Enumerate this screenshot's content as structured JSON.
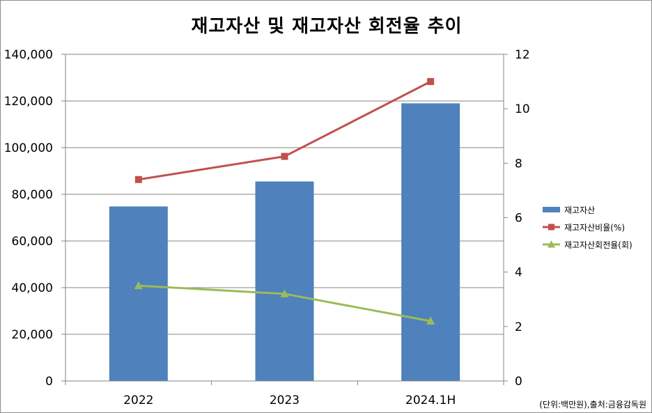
{
  "chart_data": {
    "type": "bar",
    "title": "재고자산 및 재고자산 회전율 추이",
    "categories": [
      "2022",
      "2023",
      "2024.1H"
    ],
    "y_left": {
      "range": [
        0,
        140000
      ],
      "ticks": [
        "0",
        "20,000",
        "40,000",
        "60,000",
        "80,000",
        "100,000",
        "120,000",
        "140,000"
      ],
      "tick_values": [
        0,
        20000,
        40000,
        60000,
        80000,
        100000,
        120000,
        140000
      ]
    },
    "y_right": {
      "range": [
        0,
        12
      ],
      "ticks": [
        "0",
        "2",
        "4",
        "6",
        "8",
        "10",
        "12"
      ],
      "tick_values": [
        0,
        2,
        4,
        6,
        8,
        10,
        12
      ]
    },
    "series": [
      {
        "name": "재고자산",
        "type": "bar",
        "axis": "left",
        "color": "#4f81bd",
        "values": [
          74800,
          85500,
          119000
        ]
      },
      {
        "name": "재고자산비율(%)",
        "type": "line",
        "axis": "right",
        "marker": "square",
        "color": "#c0504d",
        "values": [
          7.4,
          8.25,
          11.0
        ]
      },
      {
        "name": "재고자산회전율(회)",
        "type": "line",
        "axis": "right",
        "marker": "triangle",
        "color": "#9bbb59",
        "values": [
          3.5,
          3.2,
          2.2
        ]
      }
    ],
    "legend_position": "right",
    "grid": true,
    "source_note": "(단위:백만원),출처:금융감독원"
  }
}
